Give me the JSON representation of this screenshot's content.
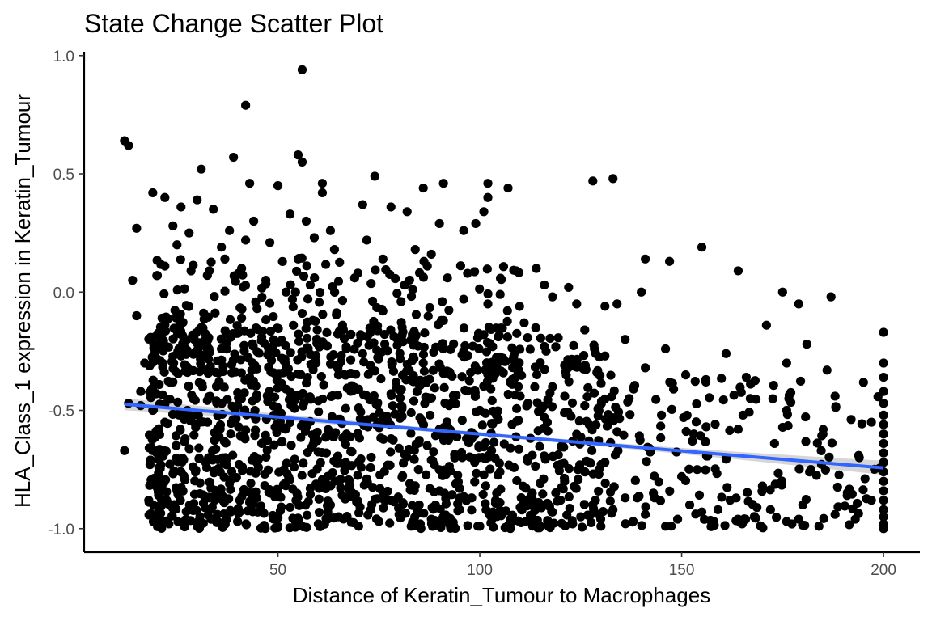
{
  "chart_data": {
    "type": "scatter",
    "title": "State Change Scatter Plot",
    "xlabel": "Distance of Keratin_Tumour to Macrophages",
    "ylabel": "HLA_Class_1 expression in Keratin_Tumour",
    "xlim": [
      2,
      209
    ],
    "ylim": [
      -1.1,
      1.03
    ],
    "x_ticks": [
      50,
      100,
      150,
      200
    ],
    "x_tick_labels": [
      "50",
      "100",
      "150",
      "200"
    ],
    "y_ticks": [
      -1.0,
      -0.5,
      0.0,
      0.5,
      1.0
    ],
    "y_tick_labels": [
      "-1.0",
      "-0.5",
      "0.0",
      "0.5",
      "1.0"
    ],
    "grid": false,
    "legend": "none",
    "point_color": "#000000",
    "fit": {
      "method": "linear",
      "color": "#3366FF",
      "band_color": "#999999",
      "x_start": 12,
      "y_start": -0.474,
      "x_end": 200,
      "y_end": -0.743,
      "se_start": 0.025,
      "se_mid": 0.008,
      "se_end": 0.03
    },
    "points": [
      [
        56,
        0.94
      ],
      [
        42,
        0.79
      ],
      [
        12,
        0.64
      ],
      [
        13,
        0.62
      ],
      [
        55,
        0.58
      ],
      [
        39,
        0.57
      ],
      [
        56,
        0.55
      ],
      [
        31,
        0.52
      ],
      [
        74,
        0.49
      ],
      [
        133,
        0.48
      ],
      [
        128,
        0.47
      ],
      [
        91,
        0.46
      ],
      [
        102,
        0.46
      ],
      [
        107,
        0.44
      ],
      [
        61,
        0.46
      ],
      [
        86,
        0.44
      ],
      [
        43,
        0.46
      ],
      [
        50,
        0.45
      ],
      [
        61,
        0.42
      ],
      [
        15,
        0.27
      ],
      [
        14,
        0.05
      ],
      [
        19,
        0.42
      ],
      [
        22,
        0.4
      ],
      [
        30,
        0.39
      ],
      [
        34,
        0.35
      ],
      [
        26,
        0.36
      ],
      [
        53,
        0.33
      ],
      [
        57,
        0.3
      ],
      [
        44,
        0.3
      ],
      [
        38,
        0.26
      ],
      [
        24,
        0.28
      ],
      [
        63,
        0.26
      ],
      [
        71,
        0.37
      ],
      [
        78,
        0.36
      ],
      [
        82,
        0.34
      ],
      [
        101,
        0.34
      ],
      [
        99,
        0.29
      ],
      [
        102,
        0.4
      ],
      [
        96,
        0.26
      ],
      [
        90,
        0.29
      ],
      [
        42,
        0.22
      ],
      [
        48,
        0.21
      ],
      [
        36,
        0.19
      ],
      [
        28,
        0.25
      ],
      [
        25,
        0.2
      ],
      [
        59,
        0.23
      ],
      [
        64,
        0.18
      ],
      [
        72,
        0.22
      ],
      [
        84,
        0.18
      ],
      [
        88,
        0.16
      ],
      [
        76,
        0.14
      ],
      [
        55,
        0.14
      ],
      [
        41,
        0.1
      ],
      [
        33,
        0.09
      ],
      [
        22,
        0.11
      ],
      [
        20,
        0.07
      ],
      [
        47,
        0.05
      ],
      [
        52,
        0.0
      ],
      [
        58,
        0.03
      ],
      [
        69,
        0.06
      ],
      [
        87,
        0.11
      ],
      [
        92,
        0.06
      ],
      [
        109,
        0.09
      ],
      [
        114,
        0.1
      ],
      [
        116,
        0.03
      ],
      [
        122,
        0.02
      ],
      [
        118,
        -0.02
      ],
      [
        124,
        -0.05
      ],
      [
        131,
        -0.06
      ],
      [
        134,
        -0.05
      ],
      [
        141,
        0.14
      ],
      [
        147,
        0.13
      ],
      [
        155,
        0.19
      ],
      [
        164,
        0.09
      ],
      [
        175,
        0.0
      ],
      [
        179,
        -0.05
      ],
      [
        187,
        -0.02
      ],
      [
        140,
        0.0
      ],
      [
        102,
        -0.05
      ],
      [
        96,
        -0.03
      ],
      [
        17,
        -0.3
      ],
      [
        16,
        -0.42
      ],
      [
        19,
        -0.5
      ],
      [
        22,
        -0.55
      ],
      [
        24,
        -0.38
      ],
      [
        27,
        -0.62
      ],
      [
        29,
        -0.45
      ],
      [
        32,
        -0.33
      ],
      [
        35,
        -0.58
      ],
      [
        37,
        -0.7
      ],
      [
        40,
        -0.48
      ],
      [
        43,
        -0.36
      ],
      [
        46,
        -0.64
      ],
      [
        49,
        -0.52
      ],
      [
        52,
        -0.41
      ],
      [
        54,
        -0.74
      ],
      [
        57,
        -0.57
      ],
      [
        60,
        -0.46
      ],
      [
        62,
        -0.68
      ],
      [
        65,
        -0.35
      ],
      [
        67,
        -0.6
      ],
      [
        70,
        -0.49
      ],
      [
        72,
        -0.79
      ],
      [
        75,
        -0.55
      ],
      [
        78,
        -0.43
      ],
      [
        80,
        -0.66
      ],
      [
        83,
        -0.51
      ],
      [
        85,
        -0.39
      ],
      [
        88,
        -0.71
      ],
      [
        90,
        -0.58
      ],
      [
        93,
        -0.47
      ],
      [
        95,
        -0.83
      ],
      [
        98,
        -0.62
      ],
      [
        100,
        -0.5
      ],
      [
        103,
        -0.36
      ],
      [
        105,
        -0.76
      ],
      [
        108,
        -0.56
      ],
      [
        110,
        -0.44
      ],
      [
        113,
        -0.69
      ],
      [
        116,
        -0.53
      ],
      [
        118,
        -0.4
      ],
      [
        121,
        -0.8
      ],
      [
        123,
        -0.63
      ],
      [
        126,
        -0.48
      ],
      [
        129,
        -0.34
      ],
      [
        131,
        -0.72
      ],
      [
        134,
        -0.59
      ],
      [
        137,
        -0.45
      ],
      [
        139,
        -0.87
      ],
      [
        142,
        -0.66
      ],
      [
        145,
        -0.52
      ],
      [
        148,
        -0.41
      ],
      [
        150,
        -0.78
      ],
      [
        153,
        -0.6
      ],
      [
        156,
        -0.37
      ],
      [
        159,
        -0.92
      ],
      [
        161,
        -0.7
      ],
      [
        164,
        -0.58
      ],
      [
        167,
        -0.45
      ],
      [
        170,
        -0.82
      ],
      [
        173,
        -0.64
      ],
      [
        176,
        -0.5
      ],
      [
        179,
        -0.96
      ],
      [
        182,
        -0.75
      ],
      [
        185,
        -0.6
      ],
      [
        188,
        -0.44
      ],
      [
        191,
        -0.86
      ],
      [
        194,
        -0.7
      ],
      [
        197,
        -0.55
      ],
      [
        21,
        -0.2
      ],
      [
        26,
        -0.27
      ],
      [
        31,
        -0.15
      ],
      [
        36,
        -0.24
      ],
      [
        41,
        -0.11
      ],
      [
        46,
        -0.19
      ],
      [
        51,
        -0.28
      ],
      [
        56,
        -0.09
      ],
      [
        61,
        -0.22
      ],
      [
        66,
        -0.14
      ],
      [
        71,
        -0.26
      ],
      [
        76,
        -0.08
      ],
      [
        81,
        -0.21
      ],
      [
        86,
        -0.3
      ],
      [
        91,
        -0.12
      ],
      [
        96,
        -0.25
      ],
      [
        101,
        -0.18
      ],
      [
        106,
        -0.29
      ],
      [
        111,
        -0.13
      ],
      [
        116,
        -0.23
      ],
      [
        121,
        -0.31
      ],
      [
        126,
        -0.16
      ],
      [
        131,
        -0.27
      ],
      [
        136,
        -0.2
      ],
      [
        141,
        -0.32
      ],
      [
        146,
        -0.24
      ],
      [
        151,
        -0.35
      ],
      [
        156,
        -0.38
      ],
      [
        161,
        -0.26
      ],
      [
        166,
        -0.36
      ],
      [
        171,
        -0.14
      ],
      [
        176,
        -0.3
      ],
      [
        181,
        -0.22
      ],
      [
        186,
        -0.33
      ],
      [
        18,
        -0.88
      ],
      [
        20,
        -0.95
      ],
      [
        23,
        -0.98
      ],
      [
        25,
        -0.84
      ],
      [
        28,
        -0.92
      ],
      [
        30,
        -0.99
      ],
      [
        33,
        -0.87
      ],
      [
        35,
        -0.94
      ],
      [
        38,
        -0.81
      ],
      [
        40,
        -0.97
      ],
      [
        43,
        -0.89
      ],
      [
        45,
        -0.93
      ],
      [
        48,
        -0.85
      ],
      [
        50,
        -0.99
      ],
      [
        53,
        -0.91
      ],
      [
        55,
        -0.96
      ],
      [
        58,
        -0.83
      ],
      [
        60,
        -0.98
      ],
      [
        63,
        -0.9
      ],
      [
        65,
        -0.95
      ],
      [
        68,
        -0.86
      ],
      [
        70,
        -0.99
      ],
      [
        73,
        -0.92
      ],
      [
        75,
        -0.97
      ],
      [
        78,
        -0.88
      ],
      [
        80,
        -0.94
      ],
      [
        83,
        -0.99
      ],
      [
        85,
        -0.9
      ],
      [
        88,
        -0.96
      ],
      [
        90,
        -0.84
      ],
      [
        93,
        -0.98
      ],
      [
        95,
        -0.92
      ],
      [
        98,
        -0.87
      ],
      [
        100,
        -0.99
      ],
      [
        103,
        -0.94
      ],
      [
        105,
        -0.89
      ],
      [
        108,
        -0.97
      ],
      [
        110,
        -0.91
      ],
      [
        113,
        -0.85
      ],
      [
        115,
        -0.99
      ],
      [
        118,
        -0.93
      ],
      [
        120,
        -0.88
      ],
      [
        123,
        -0.98
      ],
      [
        125,
        -0.95
      ],
      [
        128,
        -0.9
      ],
      [
        130,
        -0.99
      ],
      [
        133,
        -0.92
      ],
      [
        136,
        -0.87
      ],
      [
        138,
        -0.97
      ],
      [
        141,
        -0.94
      ],
      [
        143,
        -0.85
      ],
      [
        146,
        -0.99
      ],
      [
        149,
        -0.96
      ],
      [
        152,
        -0.9
      ],
      [
        155,
        -0.93
      ],
      [
        158,
        -0.97
      ],
      [
        162,
        -0.88
      ],
      [
        165,
        -0.98
      ],
      [
        168,
        -0.95
      ],
      [
        172,
        -0.92
      ],
      [
        176,
        -0.97
      ],
      [
        180,
        -0.9
      ],
      [
        184,
        -0.99
      ],
      [
        188,
        -0.94
      ],
      [
        193,
        -0.96
      ],
      [
        197,
        -0.88
      ],
      [
        200,
        -0.17
      ],
      [
        200,
        -0.3
      ],
      [
        200,
        -0.36
      ],
      [
        200,
        -0.42
      ],
      [
        200,
        -0.47
      ],
      [
        200,
        -0.52
      ],
      [
        200,
        -0.56
      ],
      [
        200,
        -0.6
      ],
      [
        200,
        -0.64
      ],
      [
        200,
        -0.68
      ],
      [
        200,
        -0.72
      ],
      [
        200,
        -0.76
      ],
      [
        200,
        -0.8
      ],
      [
        200,
        -0.84
      ],
      [
        200,
        -0.88
      ],
      [
        200,
        -0.92
      ],
      [
        200,
        -0.95
      ],
      [
        200,
        -0.98
      ],
      [
        200,
        -1.0
      ],
      [
        12,
        -0.67
      ],
      [
        13,
        -0.47
      ],
      [
        16,
        -0.48
      ],
      [
        19,
        -0.67
      ],
      [
        21,
        -0.73
      ],
      [
        15,
        -0.1
      ]
    ],
    "dense_cloud": {
      "note_ranges": [
        {
          "x": [
            18,
            130
          ],
          "y": [
            -1.0,
            -0.15
          ],
          "count": 1150
        },
        {
          "x": [
            130,
            200
          ],
          "y": [
            -1.0,
            -0.35
          ],
          "count": 170
        },
        {
          "x": [
            20,
            110
          ],
          "y": [
            -0.35,
            0.15
          ],
          "count": 230
        }
      ],
      "seed": 17
    }
  }
}
